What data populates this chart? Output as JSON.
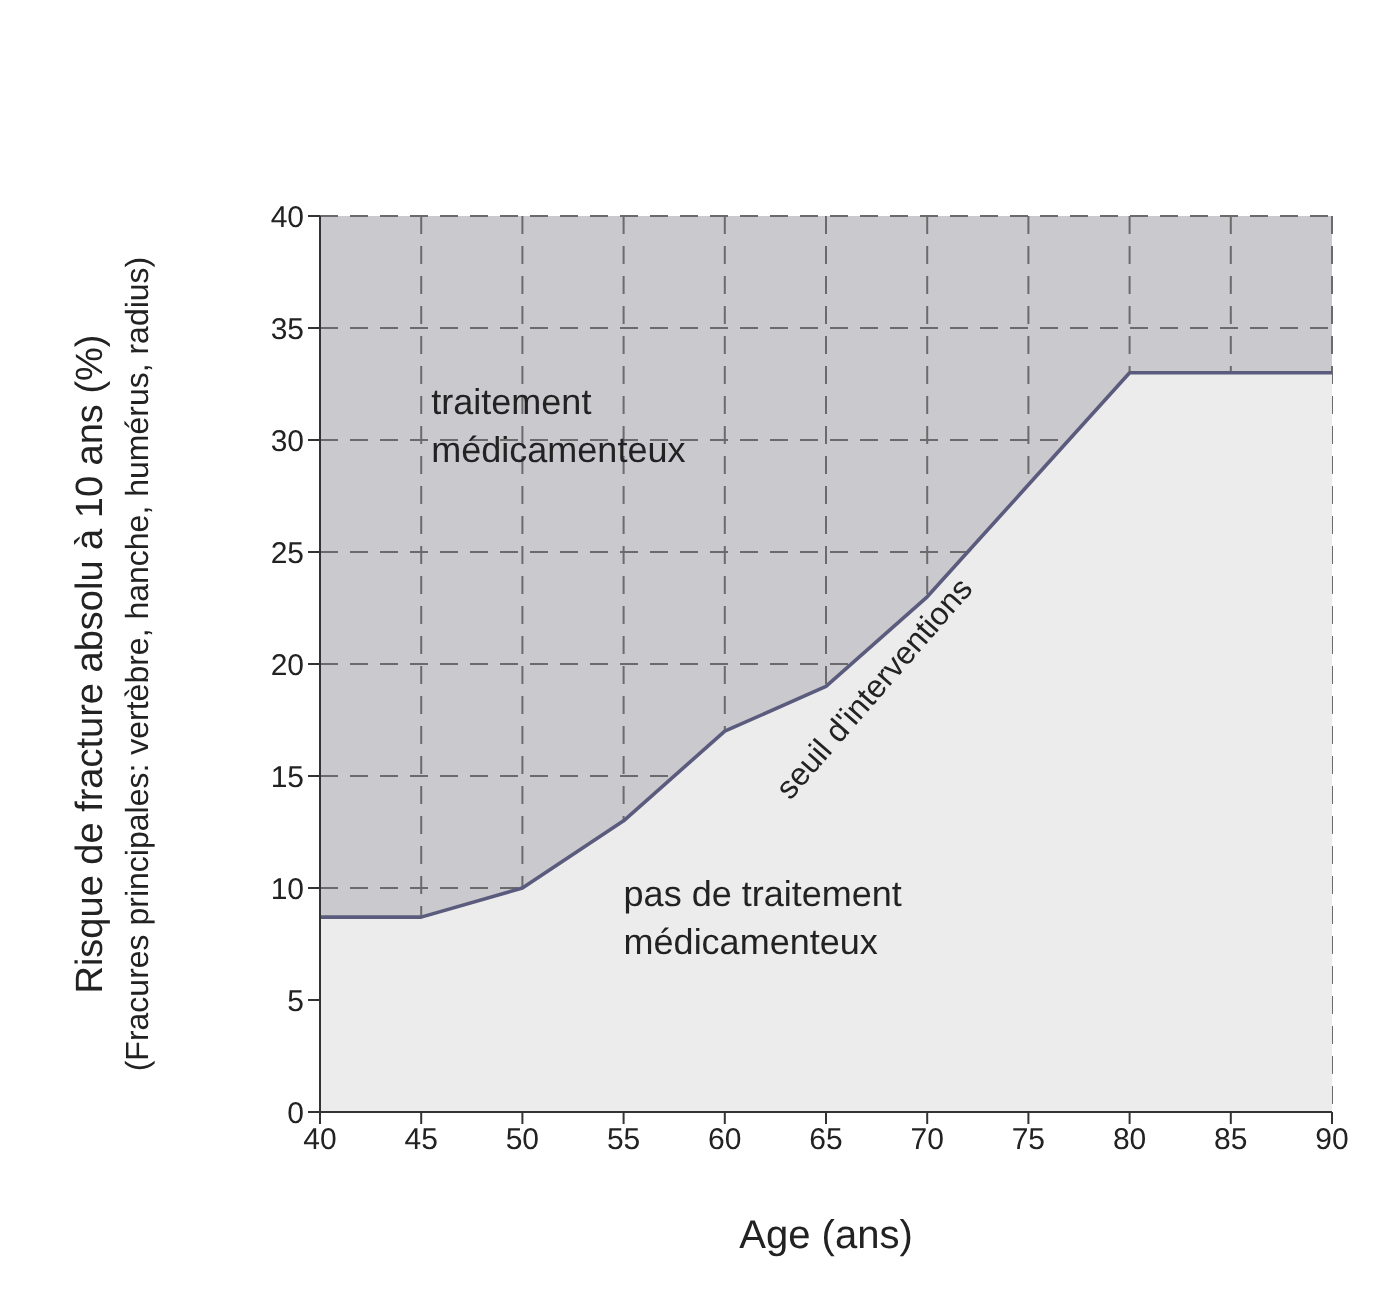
{
  "chart_data": {
    "type": "area",
    "xlabel": "Age (ans)",
    "ylabel": "Risque de fracture absolu à 10 ans (%)\n(Fracures principales: vertèbre, hanche, humérus, radius)",
    "x": [
      40,
      45,
      50,
      55,
      60,
      65,
      70,
      75,
      80,
      90
    ],
    "series": [
      {
        "color": "#5b5b7d",
        "values": [
          8.7,
          8.7,
          10,
          13,
          17,
          19,
          23,
          28,
          33,
          33
        ]
      }
    ],
    "xlim": [
      40,
      90
    ],
    "xticks": [
      40,
      45,
      50,
      55,
      60,
      65,
      70,
      75,
      80,
      85,
      90
    ],
    "ylim": [
      0,
      40
    ],
    "yticks": [
      0,
      5,
      10,
      15,
      20,
      25,
      30,
      35,
      40
    ],
    "grid": true,
    "annotations": [
      "traitement\nmédicamenteux",
      "seuil d'interventions",
      "pas de traitement\nmédicamenteux"
    ]
  }
}
